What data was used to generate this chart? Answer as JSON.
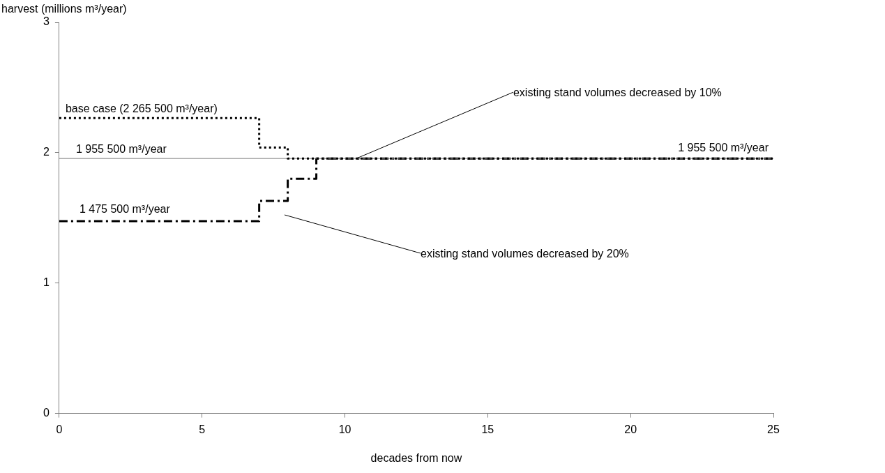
{
  "chart_data": {
    "type": "step",
    "xlabel": "decades from now",
    "ylabel": "harvest (millions m³/year)",
    "xlim": [
      0,
      25
    ],
    "xticks": [
      0,
      5,
      10,
      15,
      20,
      25
    ],
    "ylim": [
      0,
      3
    ],
    "yticks": [
      0,
      1,
      2,
      3
    ],
    "grid": false,
    "legend": false,
    "marker": "none",
    "series": [
      {
        "color": "#000000",
        "line_style": "dotted",
        "x": [
          0,
          7,
          8,
          25
        ],
        "values": [
          2.2655,
          2.04,
          1.9555,
          1.9555
        ]
      },
      {
        "color": "#808080",
        "line_style": "solid",
        "x": [
          0,
          25
        ],
        "values": [
          1.9555,
          1.9555
        ]
      },
      {
        "color": "#000000",
        "line_style": "dashed",
        "x": [
          0,
          7,
          8,
          9,
          25
        ],
        "values": [
          1.4755,
          1.63,
          1.8,
          1.9555,
          1.9555
        ]
      }
    ],
    "annotations": [
      {
        "text": "base case (2 265 500 m³/year)",
        "x": 0,
        "y": 2.2655
      },
      {
        "text": "1 955 500 m³/year",
        "x": 0,
        "y": 1.9555
      },
      {
        "text": "1 475 500 m³/year",
        "x": 0,
        "y": 1.4755
      },
      {
        "text": "1 955 500 m³/year",
        "x": 25,
        "y": 1.9555
      },
      {
        "text": "existing stand volumes decreased by 10%",
        "x": 10.4,
        "y": 1.9555
      },
      "existing stand volumes decreased by 20%"
    ]
  }
}
